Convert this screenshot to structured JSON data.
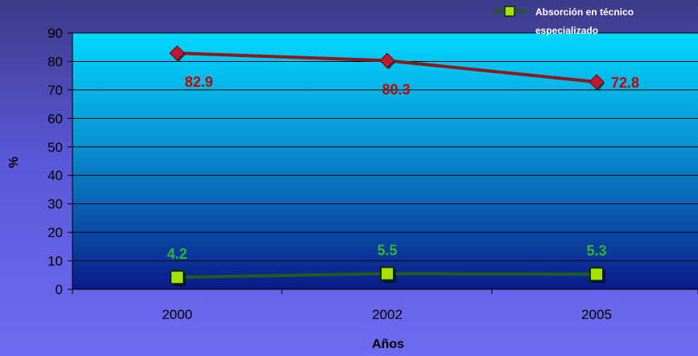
{
  "chart_data": {
    "type": "line",
    "title": "",
    "xlabel": "Años",
    "ylabel": "%",
    "categories": [
      "2000",
      "2002",
      "2005"
    ],
    "ylim": [
      0,
      90
    ],
    "yticks": [
      "0",
      "10",
      "20",
      "30",
      "40",
      "50",
      "60",
      "70",
      "80",
      "90"
    ],
    "grid": true,
    "legend_position": "top-right",
    "series": [
      {
        "values": [
          82.9,
          80.3,
          72.8
        ],
        "labels": [
          "82.9",
          "80.3",
          "72.8"
        ],
        "color": "#8b1a1a",
        "label_color": "#c00000",
        "marker": "diamond"
      },
      {
        "name": "Absorción en técnico especializado",
        "values": [
          4.2,
          5.5,
          5.3
        ],
        "labels": [
          "4.2",
          "5.5",
          "5.3"
        ],
        "color": "#1f5c1f",
        "label_color": "#2eb82e",
        "marker": "square"
      }
    ],
    "legend": {
      "line1": "Absorción en técnico",
      "line2": "especializado"
    }
  },
  "colors": {
    "plot_top": "#00d8ff",
    "plot_bottom": "#0a1a88",
    "grid": "#000000",
    "marker_square_fill": "#a8e000"
  }
}
